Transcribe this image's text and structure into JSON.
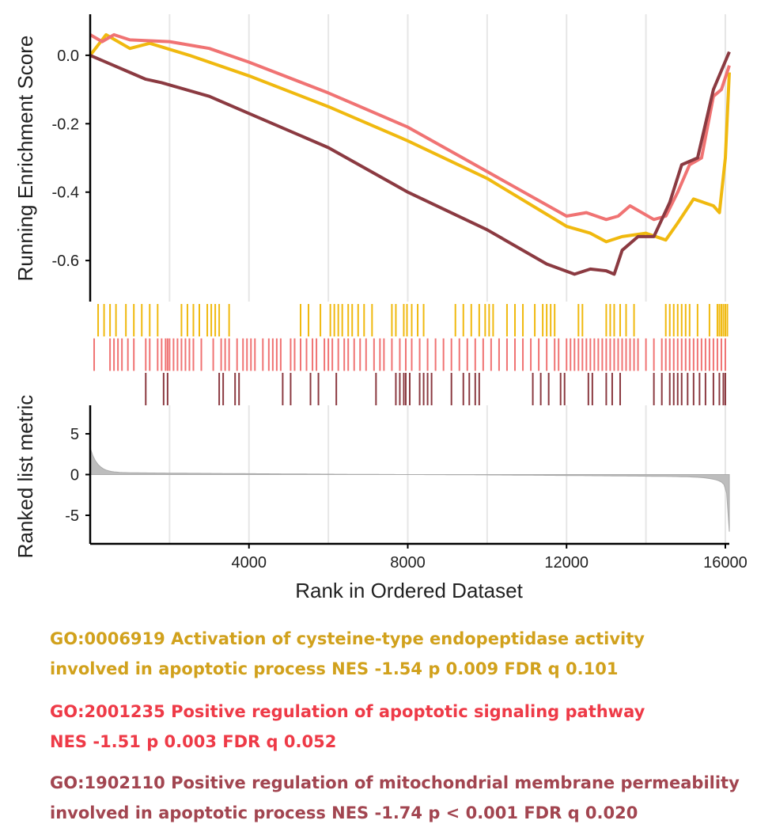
{
  "chart_data": {
    "type": "line",
    "xlabel": "Rank in Ordered Dataset",
    "xlim": [
      0,
      16100
    ],
    "x_ticks": [
      "4000",
      "8000",
      "12000",
      "16000"
    ],
    "x_tick_values": [
      4000,
      8000,
      12000,
      16000
    ],
    "es_panel": {
      "ylabel": "Running Enrichment Score",
      "ylim": [
        -0.72,
        0.12
      ],
      "y_ticks": [
        "0.0",
        "-0.2",
        "-0.4",
        "-0.6"
      ],
      "y_tick_values": [
        0.0,
        -0.2,
        -0.4,
        -0.6
      ]
    },
    "metric_panel": {
      "ylabel": "Ranked list metric",
      "ylim": [
        -8.5,
        8.5
      ],
      "y_ticks": [
        "5",
        "0",
        "-5"
      ],
      "y_tick_values": [
        5,
        0,
        -5
      ]
    },
    "grid": true,
    "series": [
      {
        "color": "#f0b90f",
        "points": [
          [
            0,
            0.0
          ],
          [
            400,
            0.06
          ],
          [
            1000,
            0.02
          ],
          [
            1500,
            0.035
          ],
          [
            2500,
            0.0
          ],
          [
            4000,
            -0.06
          ],
          [
            6000,
            -0.15
          ],
          [
            8000,
            -0.25
          ],
          [
            10000,
            -0.36
          ],
          [
            12000,
            -0.5
          ],
          [
            12600,
            -0.52
          ],
          [
            13000,
            -0.545
          ],
          [
            13400,
            -0.53
          ],
          [
            14000,
            -0.52
          ],
          [
            14500,
            -0.54
          ],
          [
            14800,
            -0.49
          ],
          [
            15200,
            -0.42
          ],
          [
            15700,
            -0.44
          ],
          [
            15850,
            -0.46
          ],
          [
            16000,
            -0.3
          ],
          [
            16100,
            -0.05
          ]
        ],
        "hits": [
          200,
          350,
          500,
          650,
          900,
          1100,
          1300,
          1500,
          1700,
          2300,
          2450,
          2600,
          2750,
          2950,
          3050,
          3150,
          3250,
          3500,
          5300,
          5500,
          5800,
          6050,
          6150,
          6250,
          6350,
          6500,
          6600,
          6750,
          6900,
          7100,
          7600,
          7700,
          7900,
          7980,
          8100,
          8250,
          8400,
          9200,
          9400,
          9600,
          9800,
          9950,
          10050,
          10150,
          10500,
          10700,
          10900,
          11200,
          11400,
          11500,
          11600,
          11700,
          12300,
          12400,
          13000,
          13100,
          13200,
          13350,
          13500,
          13700,
          14500,
          14600,
          14700,
          14800,
          14900,
          15000,
          15100,
          15300,
          15600,
          15800,
          15850,
          15900,
          15950,
          16000,
          16050
        ]
      },
      {
        "color": "#f07373",
        "points": [
          [
            0,
            0.06
          ],
          [
            300,
            0.04
          ],
          [
            600,
            0.06
          ],
          [
            1000,
            0.045
          ],
          [
            2000,
            0.04
          ],
          [
            3000,
            0.02
          ],
          [
            4000,
            -0.02
          ],
          [
            6000,
            -0.11
          ],
          [
            8000,
            -0.21
          ],
          [
            10000,
            -0.34
          ],
          [
            12000,
            -0.47
          ],
          [
            12500,
            -0.46
          ],
          [
            13000,
            -0.48
          ],
          [
            13300,
            -0.47
          ],
          [
            13600,
            -0.44
          ],
          [
            14200,
            -0.48
          ],
          [
            14500,
            -0.47
          ],
          [
            14800,
            -0.4
          ],
          [
            15100,
            -0.32
          ],
          [
            15400,
            -0.3
          ],
          [
            15700,
            -0.12
          ],
          [
            15900,
            -0.1
          ],
          [
            16100,
            -0.03
          ]
        ],
        "hits": [
          100,
          500,
          600,
          700,
          800,
          950,
          1100,
          1400,
          1500,
          1700,
          1800,
          1900,
          1950,
          2000,
          2100,
          2200,
          2300,
          2400,
          2500,
          2600,
          2800,
          3100,
          3300,
          3400,
          3500,
          3700,
          3850,
          3950,
          4050,
          4150,
          4350,
          4500,
          4600,
          4700,
          4800,
          5050,
          5150,
          5300,
          5450,
          5600,
          5700,
          5900,
          6000,
          6100,
          6250,
          6400,
          6500,
          6650,
          6800,
          6950,
          7150,
          7300,
          7400,
          7600,
          7800,
          7950,
          8100,
          8300,
          8500,
          8700,
          8900,
          9100,
          9300,
          9500,
          9700,
          9900,
          10100,
          10300,
          10500,
          10700,
          10900,
          11100,
          11300,
          11500,
          11700,
          11800,
          12000,
          12100,
          12200,
          12300,
          12400,
          12500,
          12600,
          12700,
          12800,
          12900,
          13000,
          13100,
          13200,
          13300,
          13400,
          13500,
          13600,
          13700,
          13800,
          14000,
          14200,
          14400,
          14500,
          14600,
          14700,
          14800,
          14900,
          15000,
          15100,
          15200,
          15300,
          15400,
          15500,
          15600,
          15700,
          15800,
          15900,
          16000
        ]
      },
      {
        "color": "#8b3a41",
        "points": [
          [
            0,
            0.0
          ],
          [
            1000,
            -0.05
          ],
          [
            1400,
            -0.07
          ],
          [
            1800,
            -0.08
          ],
          [
            3000,
            -0.12
          ],
          [
            4000,
            -0.17
          ],
          [
            6000,
            -0.27
          ],
          [
            8000,
            -0.4
          ],
          [
            10000,
            -0.51
          ],
          [
            11500,
            -0.61
          ],
          [
            12200,
            -0.64
          ],
          [
            12600,
            -0.625
          ],
          [
            13000,
            -0.63
          ],
          [
            13200,
            -0.64
          ],
          [
            13400,
            -0.57
          ],
          [
            13800,
            -0.53
          ],
          [
            14200,
            -0.53
          ],
          [
            14600,
            -0.43
          ],
          [
            14900,
            -0.32
          ],
          [
            15300,
            -0.3
          ],
          [
            15500,
            -0.2
          ],
          [
            15700,
            -0.1
          ],
          [
            16100,
            0.01
          ]
        ],
        "hits": [
          1400,
          1850,
          1950,
          3250,
          3350,
          3650,
          3750,
          4850,
          5050,
          5550,
          5750,
          6200,
          7200,
          7700,
          7800,
          7900,
          7950,
          8050,
          8300,
          8400,
          8500,
          8600,
          9100,
          9400,
          9550,
          9700,
          9800,
          11150,
          11350,
          11550,
          11850,
          11950,
          12550,
          12650,
          13000,
          13150,
          13350,
          14200,
          14400,
          14600,
          14700,
          14800,
          14900,
          15050,
          15200,
          15350,
          15500,
          15700,
          15850,
          15950,
          16000
        ]
      }
    ]
  },
  "captions": [
    {
      "color": "#d1a11c",
      "lines": [
        "GO:0006919 Activation of cysteine-type endopeptidase activity",
        "involved in apoptotic process NES -1.54 p 0.009 FDR q 0.101"
      ]
    },
    {
      "color": "#ee3a47",
      "lines": [
        "GO:2001235 Positive regulation of apoptotic signaling pathway",
        "NES -1.51 p 0.003 FDR q 0.052"
      ]
    },
    {
      "color": "#a24550",
      "lines": [
        "GO:1902110 Positive regulation of mitochondrial membrane permeability",
        "involved in apoptotic process NES -1.74 p < 0.001 FDR q 0.020"
      ]
    }
  ]
}
